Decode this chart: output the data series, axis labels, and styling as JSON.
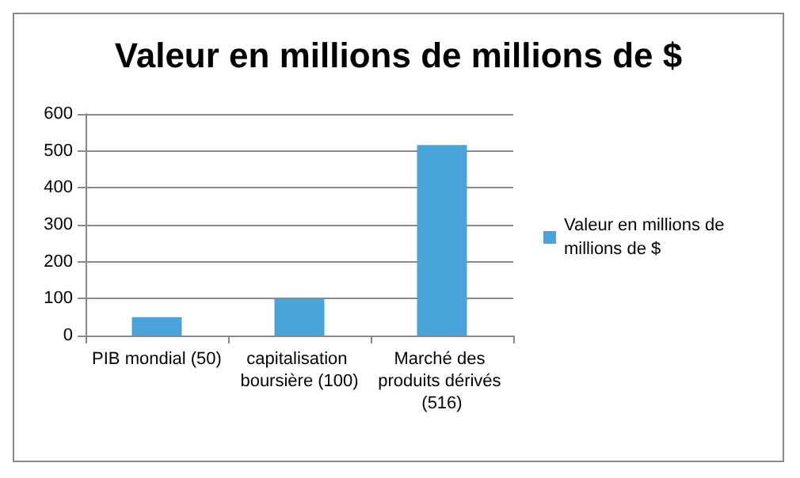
{
  "chart_data": {
    "type": "bar",
    "title": "Valeur en millions de millions de $",
    "categories": [
      "PIB mondial (50)",
      "capitalisation boursière (100)",
      "Marché des produits dérivés (516)"
    ],
    "series": [
      {
        "name": "Valeur en millions de millions de $",
        "color": "#4aa3d9",
        "values": [
          50,
          100,
          516
        ]
      }
    ],
    "ylim": [
      0,
      600
    ],
    "yticks": [
      0,
      100,
      200,
      300,
      400,
      500,
      600
    ],
    "grid": "y",
    "legend": "right"
  }
}
